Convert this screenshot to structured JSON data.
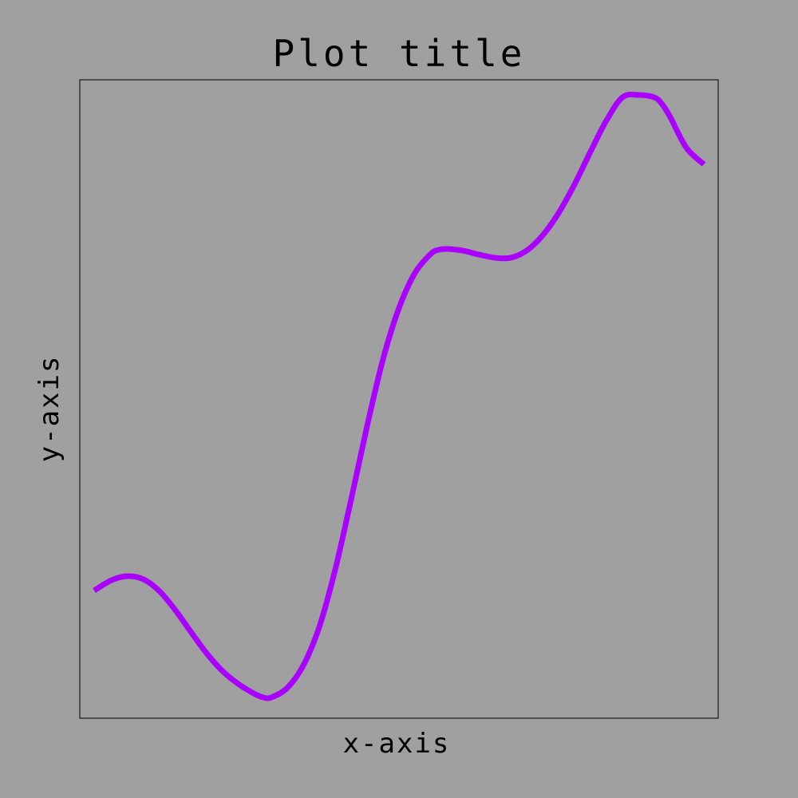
{
  "chart_data": {
    "type": "line",
    "title": "Plot title",
    "xlabel": "x-axis",
    "ylabel": "y-axis",
    "xlim": [
      0,
      1
    ],
    "ylim": [
      0,
      1
    ],
    "grid": false,
    "background_color": "#a0a0a0",
    "frame_color": "#000000",
    "series": [
      {
        "color": "#aa00ff",
        "x": [
          0.0225,
          0.05,
          0.075,
          0.1,
          0.125,
          0.15,
          0.175,
          0.2,
          0.225,
          0.25,
          0.275,
          0.2875,
          0.3,
          0.325,
          0.35,
          0.375,
          0.4,
          0.425,
          0.45,
          0.475,
          0.5,
          0.525,
          0.55,
          0.5625,
          0.575,
          0.6,
          0.625,
          0.65,
          0.675,
          0.7,
          0.725,
          0.75,
          0.775,
          0.8,
          0.825,
          0.85,
          0.875,
          0.9,
          0.9125,
          0.925,
          0.95,
          0.9775
        ],
        "y": [
          0.2,
          0.2163,
          0.2225,
          0.2175,
          0.1988,
          0.1688,
          0.1338,
          0.1,
          0.0725,
          0.0525,
          0.0375,
          0.0325,
          0.0325,
          0.0475,
          0.0825,
          0.1425,
          0.2325,
          0.3425,
          0.4575,
          0.5625,
          0.6425,
          0.6975,
          0.7275,
          0.7338,
          0.735,
          0.7325,
          0.7263,
          0.7213,
          0.7213,
          0.7325,
          0.7563,
          0.7913,
          0.8363,
          0.8875,
          0.9363,
          0.9725,
          0.9763,
          0.9725,
          0.9613,
          0.9413,
          0.8938,
          0.8675
        ]
      }
    ]
  }
}
